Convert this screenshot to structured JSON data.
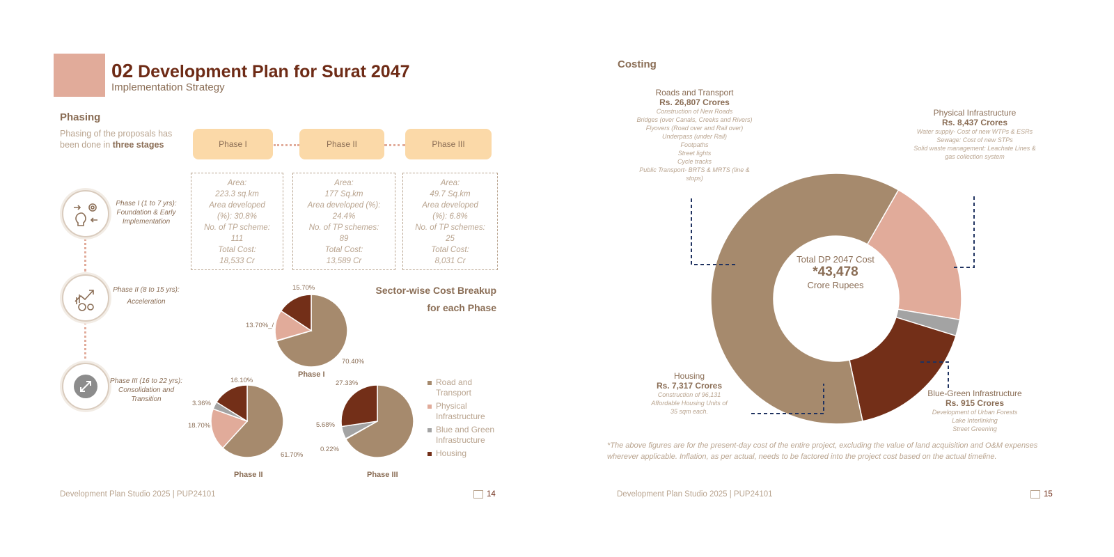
{
  "left_page": {
    "header": {
      "number": "02",
      "title": "Development Plan for Surat 2047",
      "subtitle": "Implementation Strategy"
    },
    "phasing": {
      "heading": "Phasing",
      "desc_prefix": "Phasing of the proposals has been done in ",
      "desc_bold": "three stages"
    },
    "phase_buttons": [
      "Phase I",
      "Phase II",
      "Phase III"
    ],
    "phase_stats": [
      [
        "Area:",
        "223.3 sq.km",
        "Area developed",
        "(%): 30.8%",
        "No. of TP scheme:",
        "111",
        "Total Cost:",
        "18,533 Cr"
      ],
      [
        "Area:",
        "177 Sq.km",
        "Area developed (%):",
        "24.4%",
        "No. of TP schemes:",
        "89",
        "Total Cost:",
        "13,589 Cr"
      ],
      [
        "Area:",
        "49.7 Sq.km",
        "Area developed",
        "(%): 6.8%",
        "No. of TP schemes:",
        "25",
        "Total Cost:",
        "8,031 Cr"
      ]
    ],
    "timeline": [
      {
        "line1": "Phase I (1 to 7 yrs):",
        "line2": "Foundation & Early",
        "line3": "Implementation"
      },
      {
        "line1": "Phase II (8 to 15 yrs):",
        "line2": "Acceleration",
        "line3": ""
      },
      {
        "line1": "Phase III (16 to 22 yrs):",
        "line2": "Consolidation and",
        "line3": "Transition"
      }
    ],
    "sector_heading": [
      "Sector-wise Cost Breakup",
      "for each Phase"
    ],
    "legend": [
      "Road and Transport",
      "Physical Infrastructure",
      "Blue and Green Infrastructure",
      "Housing"
    ],
    "footer": "Development Plan Studio 2025 | PUP24101",
    "page": "14"
  },
  "chart_data": [
    {
      "type": "pie",
      "title": "Phase I",
      "categories": [
        "Road and Transport",
        "Physical Infrastructure",
        "Blue and Green Infrastructure",
        "Housing"
      ],
      "values": [
        70.4,
        13.7,
        0.2,
        15.7
      ],
      "labels": [
        "70.40%",
        "13.70%",
        "",
        "15.70%"
      ]
    },
    {
      "type": "pie",
      "title": "Phase II",
      "categories": [
        "Road and Transport",
        "Physical Infrastructure",
        "Blue and Green Infrastructure",
        "Housing"
      ],
      "values": [
        61.7,
        18.7,
        3.36,
        16.1
      ],
      "labels": [
        "61.70%",
        "18.70%",
        "3.36%",
        "16.10%"
      ]
    },
    {
      "type": "pie",
      "title": "Phase III",
      "categories": [
        "Road and Transport",
        "Physical Infrastructure",
        "Blue and Green Infrastructure",
        "Housing"
      ],
      "values": [
        66.77,
        0.22,
        5.68,
        27.33
      ],
      "labels": [
        "",
        "0.22%",
        "5.68%",
        "27.33%"
      ]
    },
    {
      "type": "pie",
      "title": "Total DP 2047 Cost",
      "categories": [
        "Roads and Transport",
        "Physical Infrastructure",
        "Blue-Green Infrastructure",
        "Housing"
      ],
      "values": [
        26807,
        8437,
        915,
        7317
      ]
    }
  ],
  "colors": {
    "road": "#a68a6d",
    "physical": "#e1ab9a",
    "bluegreen": "#a3a3a3",
    "housing": "#732f18"
  },
  "right_page": {
    "heading": "Costing",
    "center": {
      "label": "Total DP 2047 Cost",
      "value": "*43,478",
      "unit": "Crore Rupees"
    },
    "roads": {
      "name": "Roads and Transport",
      "cost": "Rs. 26,807 Crores",
      "details": [
        "Construction of New Roads",
        "Bridges (over Canals, Creeks and Rivers)",
        "Flyovers (Road over and Rail over)",
        "Underpass (under Rail)",
        "Footpaths",
        "Street lights",
        "Cycle tracks",
        "Public Transport- BRTS & MRTS (line &",
        "stops)"
      ]
    },
    "physical": {
      "name": "Physical Infrastructure",
      "cost": "Rs. 8,437 Crores",
      "details": [
        "Water supply- Cost of new WTPs & ESRs",
        "Sewage: Cost of new STPs",
        "Solid waste management: Leachate Lines &",
        "gas collection system"
      ]
    },
    "housing": {
      "name": "Housing",
      "cost": "Rs. 7,317 Crores",
      "details": [
        "Construction of 96,131",
        "Affordable Housing Units of",
        "35 sqm each."
      ]
    },
    "bluegreen": {
      "name": "Blue-Green Infrastructure",
      "cost": "Rs. 915 Crores",
      "details": [
        "Development of Urban Forests",
        "Lake Interlinking",
        "Street Greening"
      ]
    },
    "note": "*The above figures are for the present-day cost of the entire project, excluding the value of land acquisition and O&M expenses wherever applicable. Inflation, as per actual, needs to be factored into the project cost based on the actual timeline.",
    "footer": "Development Plan Studio 2025 | PUP24101",
    "page": "15"
  }
}
